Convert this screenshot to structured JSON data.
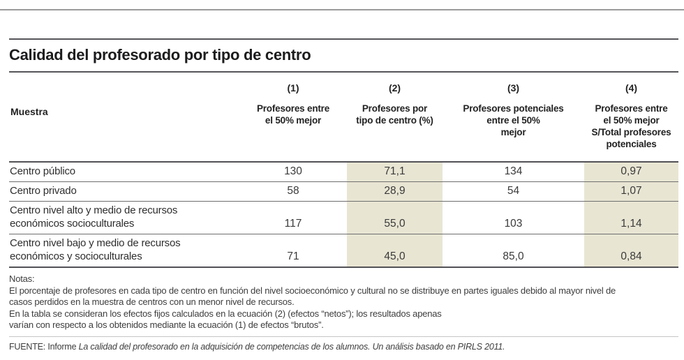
{
  "title": "Calidad del profesorado por tipo de centro",
  "table": {
    "row_header_label": "Muestra",
    "highlight_color": "#e8e5d3",
    "columns": [
      {
        "number": "(1)",
        "label": "Profesores entre\nel 50% mejor"
      },
      {
        "number": "(2)",
        "label": "Profesores por\ntipo de centro (%)"
      },
      {
        "number": "(3)",
        "label": "Profesores potenciales\nentre el 50%\nmejor"
      },
      {
        "number": "(4)",
        "label": "Profesores entre\nel 50%  mejor\nS/Total profesores\npotenciales"
      }
    ],
    "rows": [
      {
        "label": "Centro público",
        "values": [
          "130",
          "71,1",
          "134",
          "0,97"
        ]
      },
      {
        "label": "Centro privado",
        "values": [
          "58",
          "28,9",
          "54",
          "1,07"
        ]
      },
      {
        "label": "Centro nivel alto y medio de recursos\neconómicos socioculturales",
        "values": [
          "117",
          "55,0",
          "103",
          "1,14"
        ]
      },
      {
        "label": "Centro nivel bajo y medio de recursos\neconómicos y socioculturales",
        "values": [
          "71",
          "45,0",
          "85,0",
          "0,84"
        ]
      }
    ]
  },
  "notes": {
    "heading": "Notas:",
    "lines": [
      "El porcentaje de profesores en cada tipo de centro en función del nivel socioeconómico y cultural no se distribuye en partes iguales debido al mayor nivel de",
      "casos perdidos en la muestra de centros con un menor nivel de recursos.",
      "En la tabla se consideran los efectos fijos calculados en la ecuación (2) (efectos “netos”); los resultados apenas",
      "varían con respecto a los obtenidos mediante la ecuación (1) de efectos “brutos”."
    ]
  },
  "source": {
    "prefix": "FUENTE:  Informe ",
    "italic": "La calidad del  profesorado en la adquisición de competencias de los alumnos. Un análisis basado en PIRLS 2011."
  },
  "chart_data": {
    "type": "table",
    "title": "Calidad del profesorado por tipo de centro",
    "row_header": "Muestra",
    "columns": [
      "(1) Profesores entre el 50% mejor",
      "(2) Profesores por tipo de centro (%)",
      "(3) Profesores potenciales entre el 50% mejor",
      "(4) Profesores entre el 50% mejor S/Total profesores potenciales"
    ],
    "categories": [
      "Centro público",
      "Centro privado",
      "Centro nivel alto y medio de recursos económicos socioculturales",
      "Centro nivel bajo y medio de recursos económicos y socioculturales"
    ],
    "series": [
      {
        "name": "Profesores entre el 50% mejor",
        "values": [
          130,
          58,
          117,
          71
        ]
      },
      {
        "name": "Profesores por tipo de centro (%)",
        "values": [
          71.1,
          28.9,
          55.0,
          45.0
        ]
      },
      {
        "name": "Profesores potenciales entre el 50% mejor",
        "values": [
          134,
          54,
          103,
          85.0
        ]
      },
      {
        "name": "Profesores entre el 50% mejor S/Total profesores potenciales",
        "values": [
          0.97,
          1.07,
          1.14,
          0.84
        ]
      }
    ],
    "highlighted_columns": [
      2,
      4
    ],
    "layout": "columns 2 and 4 shaded beige; decimal comma formatting"
  }
}
